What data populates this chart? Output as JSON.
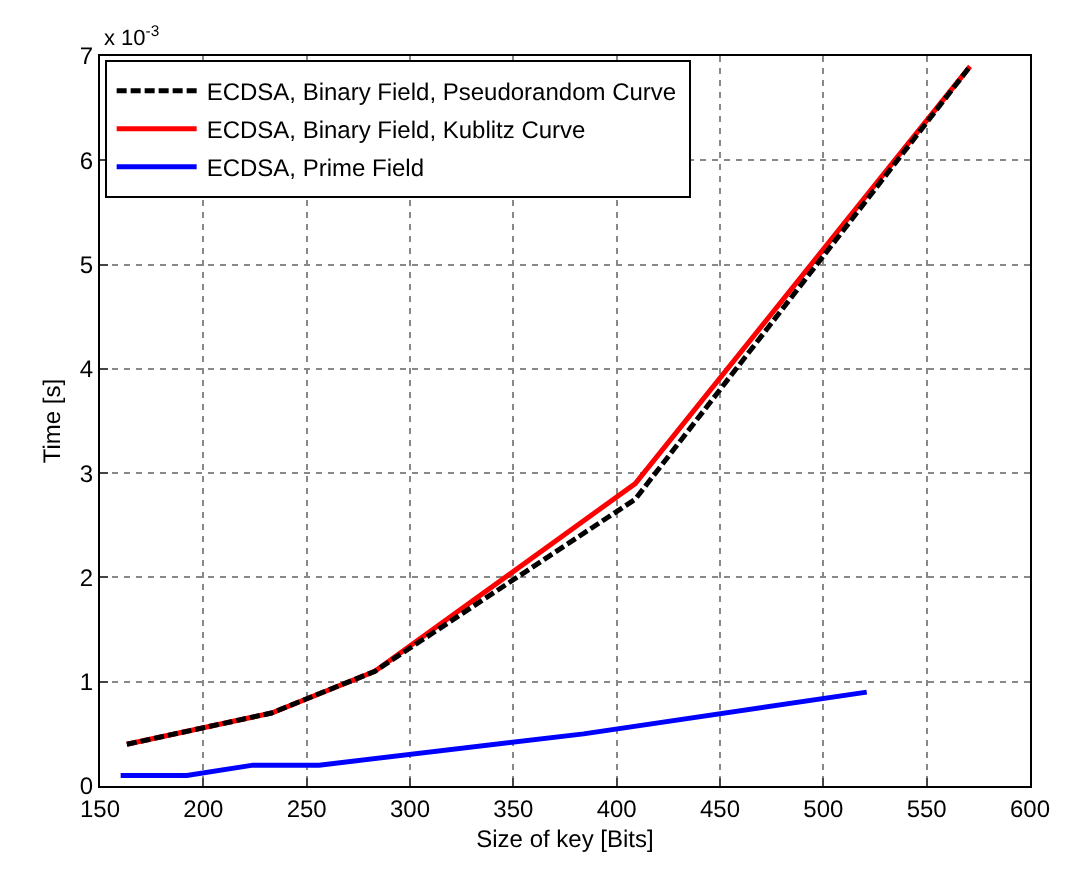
{
  "chart_data": {
    "type": "line",
    "xlabel": "Size of key [Bits]",
    "ylabel": "Time [s]",
    "annotations": [
      "x 10$^{-3}$"
    ],
    "xlim": [
      150,
      600
    ],
    "xticks": [
      150,
      200,
      250,
      300,
      350,
      400,
      450,
      500,
      550,
      600
    ],
    "ylim": [
      0,
      7
    ],
    "yticks": [
      0,
      1,
      2,
      3,
      4,
      5,
      6,
      7
    ],
    "grid": true,
    "legend": "top left",
    "marker": "none",
    "series": [
      {
        "name": "ECDSA, Binary Field, Pseudorandom Curve",
        "color": "#000000",
        "line_style": "dashed",
        "x": [
          163,
          233,
          283,
          409,
          571
        ],
        "values": [
          0.4,
          0.7,
          1.1,
          2.75,
          6.9
        ]
      },
      {
        "name": "ECDSA, Binary Field, Kublitz Curve",
        "color": "#ff0000",
        "line_style": "solid",
        "x": [
          163,
          233,
          283,
          409,
          571
        ],
        "values": [
          0.4,
          0.7,
          1.1,
          2.9,
          6.9
        ]
      },
      {
        "name": "ECDSA, Prime Field",
        "color": "#0000ff",
        "line_style": "solid",
        "x": [
          160,
          192,
          224,
          256,
          384,
          521
        ],
        "values": [
          0.1,
          0.1,
          0.2,
          0.2,
          0.5,
          0.9
        ]
      }
    ]
  }
}
